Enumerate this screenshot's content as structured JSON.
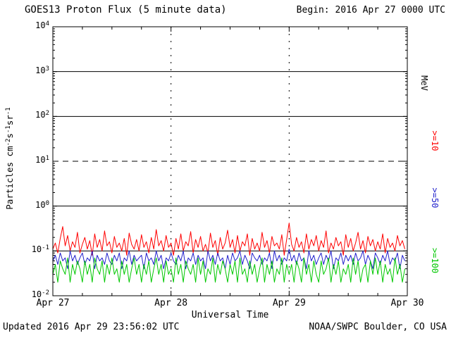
{
  "header": {
    "title": "GOES13 Proton Flux (5 minute data)",
    "begin_label": "Begin: 2016 Apr 27 0000 UTC"
  },
  "footer": {
    "updated": "Updated 2016 Apr 29 23:56:02 UTC",
    "source": "NOAA/SWPC Boulder, CO USA"
  },
  "axes": {
    "xlabel": "Universal Time",
    "ylabel_parts": [
      {
        "text": "Particles cm"
      },
      {
        "sup": "-2"
      },
      {
        "text": "s"
      },
      {
        "sup": "-1"
      },
      {
        "text": "sr"
      },
      {
        "sup": "-1"
      }
    ],
    "x_ticks": [
      {
        "label": "Apr 27",
        "hour": 0
      },
      {
        "label": "Apr 28",
        "hour": 24
      },
      {
        "label": "Apr 29",
        "hour": 48
      },
      {
        "label": "Apr 30",
        "hour": 72
      }
    ],
    "y_exponents": [
      4,
      3,
      2,
      1,
      0,
      -1,
      -2
    ]
  },
  "legend": {
    "unit_label": "MeV",
    "unit_color": "#000000",
    "items": [
      {
        "label": ">=10",
        "color": "#ff0000"
      },
      {
        "label": ">=50",
        "color": "#2222cc"
      },
      {
        "label": ">=100",
        "color": "#00c800"
      }
    ]
  },
  "chart_data": {
    "type": "line",
    "title": "GOES13 Proton Flux (5 minute data)",
    "xlabel": "Universal Time",
    "ylabel": "Particles cm^-2 s^-1 sr^-1",
    "begin": "2016 Apr 27 0000 UTC",
    "x_unit": "hours since begin",
    "x_range_hours": [
      0,
      72
    ],
    "y_scale": "log",
    "ylim": [
      0.01,
      10000
    ],
    "grid": {
      "hlines": [
        {
          "y": 1000,
          "style": "solid"
        },
        {
          "y": 100,
          "style": "solid"
        },
        {
          "y": 10,
          "style": "dashed"
        },
        {
          "y": 1,
          "style": "solid"
        },
        {
          "y": 0.1,
          "style": "solid"
        }
      ],
      "vlines_hours": [
        24,
        48
      ]
    },
    "sample_interval_hours": 0.5,
    "series": [
      {
        "name": ">=10 MeV",
        "color": "#ff0000",
        "values": [
          0.11,
          0.15,
          0.09,
          0.19,
          0.35,
          0.13,
          0.22,
          0.1,
          0.16,
          0.12,
          0.26,
          0.09,
          0.14,
          0.2,
          0.11,
          0.17,
          0.08,
          0.24,
          0.12,
          0.18,
          0.1,
          0.28,
          0.13,
          0.16,
          0.09,
          0.21,
          0.12,
          0.15,
          0.1,
          0.19,
          0.08,
          0.25,
          0.14,
          0.11,
          0.18,
          0.1,
          0.23,
          0.12,
          0.16,
          0.09,
          0.2,
          0.11,
          0.3,
          0.13,
          0.17,
          0.1,
          0.22,
          0.12,
          0.15,
          0.08,
          0.19,
          0.11,
          0.24,
          0.1,
          0.16,
          0.13,
          0.27,
          0.09,
          0.18,
          0.12,
          0.21,
          0.1,
          0.14,
          0.09,
          0.25,
          0.12,
          0.17,
          0.08,
          0.2,
          0.11,
          0.15,
          0.29,
          0.12,
          0.18,
          0.09,
          0.22,
          0.1,
          0.16,
          0.13,
          0.24,
          0.08,
          0.19,
          0.11,
          0.15,
          0.1,
          0.26,
          0.12,
          0.17,
          0.09,
          0.21,
          0.13,
          0.15,
          0.11,
          0.23,
          0.08,
          0.18,
          0.42,
          0.14,
          0.1,
          0.2,
          0.12,
          0.16,
          0.09,
          0.24,
          0.11,
          0.18,
          0.13,
          0.22,
          0.1,
          0.17,
          0.12,
          0.28,
          0.09,
          0.15,
          0.11,
          0.2,
          0.13,
          0.16,
          0.08,
          0.23,
          0.12,
          0.19,
          0.1,
          0.15,
          0.26,
          0.11,
          0.17,
          0.09,
          0.21,
          0.13,
          0.18,
          0.1,
          0.16,
          0.11,
          0.24,
          0.09,
          0.19,
          0.12,
          0.15,
          0.1,
          0.22,
          0.13,
          0.17,
          0.11
        ]
      },
      {
        "name": ">=50 MeV",
        "color": "#2222cc",
        "values": [
          0.06,
          0.08,
          0.05,
          0.09,
          0.06,
          0.07,
          0.04,
          0.1,
          0.06,
          0.08,
          0.05,
          0.07,
          0.09,
          0.05,
          0.07,
          0.06,
          0.1,
          0.04,
          0.08,
          0.06,
          0.07,
          0.05,
          0.09,
          0.06,
          0.05,
          0.08,
          0.06,
          0.09,
          0.04,
          0.07,
          0.06,
          0.1,
          0.05,
          0.08,
          0.06,
          0.07,
          0.08,
          0.04,
          0.09,
          0.06,
          0.07,
          0.05,
          0.1,
          0.06,
          0.08,
          0.04,
          0.07,
          0.06,
          0.09,
          0.06,
          0.05,
          0.08,
          0.06,
          0.1,
          0.04,
          0.07,
          0.06,
          0.09,
          0.05,
          0.08,
          0.06,
          0.07,
          0.04,
          0.1,
          0.06,
          0.08,
          0.05,
          0.09,
          0.06,
          0.07,
          0.04,
          0.08,
          0.05,
          0.09,
          0.06,
          0.07,
          0.1,
          0.05,
          0.08,
          0.06,
          0.04,
          0.09,
          0.07,
          0.06,
          0.08,
          0.05,
          0.07,
          0.06,
          0.09,
          0.04,
          0.1,
          0.06,
          0.08,
          0.05,
          0.07,
          0.06,
          0.11,
          0.06,
          0.08,
          0.05,
          0.09,
          0.06,
          0.07,
          0.04,
          0.1,
          0.06,
          0.08,
          0.05,
          0.07,
          0.09,
          0.05,
          0.08,
          0.06,
          0.1,
          0.04,
          0.07,
          0.06,
          0.09,
          0.05,
          0.08,
          0.06,
          0.08,
          0.05,
          0.09,
          0.06,
          0.07,
          0.1,
          0.05,
          0.08,
          0.06,
          0.04,
          0.09,
          0.07,
          0.05,
          0.08,
          0.06,
          0.1,
          0.05,
          0.07,
          0.06,
          0.09,
          0.04,
          0.08,
          0.06
        ]
      },
      {
        "name": ">=100 MeV",
        "color": "#00c800",
        "values": [
          0.03,
          0.05,
          0.02,
          0.06,
          0.04,
          0.03,
          0.07,
          0.02,
          0.05,
          0.03,
          0.06,
          0.04,
          0.02,
          0.06,
          0.03,
          0.05,
          0.02,
          0.07,
          0.04,
          0.03,
          0.06,
          0.02,
          0.05,
          0.03,
          0.07,
          0.03,
          0.04,
          0.02,
          0.06,
          0.03,
          0.05,
          0.02,
          0.04,
          0.07,
          0.03,
          0.05,
          0.02,
          0.05,
          0.03,
          0.06,
          0.02,
          0.04,
          0.07,
          0.03,
          0.05,
          0.02,
          0.06,
          0.03,
          0.04,
          0.02,
          0.07,
          0.03,
          0.05,
          0.02,
          0.06,
          0.04,
          0.03,
          0.05,
          0.02,
          0.07,
          0.03,
          0.06,
          0.02,
          0.04,
          0.03,
          0.07,
          0.02,
          0.05,
          0.03,
          0.06,
          0.04,
          0.02,
          0.05,
          0.03,
          0.06,
          0.02,
          0.07,
          0.03,
          0.04,
          0.02,
          0.06,
          0.03,
          0.05,
          0.02,
          0.04,
          0.07,
          0.02,
          0.05,
          0.03,
          0.06,
          0.02,
          0.04,
          0.03,
          0.07,
          0.02,
          0.05,
          0.03,
          0.05,
          0.02,
          0.06,
          0.04,
          0.02,
          0.07,
          0.03,
          0.05,
          0.02,
          0.06,
          0.03,
          0.02,
          0.06,
          0.03,
          0.04,
          0.07,
          0.02,
          0.05,
          0.03,
          0.06,
          0.02,
          0.04,
          0.03,
          0.05,
          0.02,
          0.07,
          0.03,
          0.06,
          0.02,
          0.04,
          0.05,
          0.02,
          0.06,
          0.03,
          0.07,
          0.03,
          0.06,
          0.02,
          0.05,
          0.03,
          0.04,
          0.02,
          0.07,
          0.03,
          0.05,
          0.02,
          0.04
        ]
      }
    ]
  }
}
